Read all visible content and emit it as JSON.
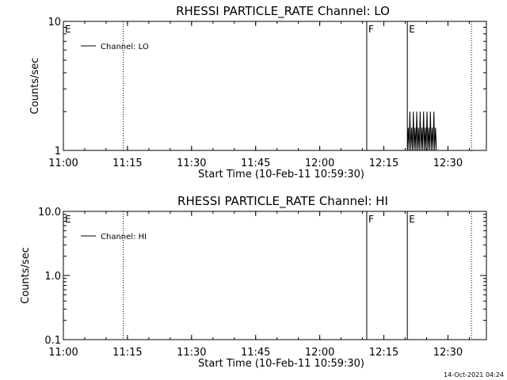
{
  "chart_data": [
    {
      "type": "line",
      "title": "RHESSI PARTICLE_RATE Channel: LO",
      "xlabel": "Start Time (10-Feb-11 10:59:30)",
      "ylabel": "Counts/sec",
      "yscale": "log",
      "xlim": [
        "11:00",
        "12:39"
      ],
      "ylim": [
        1,
        10
      ],
      "x_ticks": [
        "11:00",
        "11:15",
        "11:30",
        "11:45",
        "12:00",
        "12:15",
        "12:30"
      ],
      "y_ticks": [
        "1",
        "10"
      ],
      "legend": {
        "position": "top-left",
        "entries": [
          "Channel: LO"
        ]
      },
      "flags": [
        {
          "time": "11:00",
          "label": "E",
          "style": "dotted"
        },
        {
          "time": "11:14",
          "label": "",
          "style": "dotted"
        },
        {
          "time": "12:11",
          "label": "F",
          "style": "solid"
        },
        {
          "time": "12:20.5",
          "label": "E",
          "style": "solid"
        },
        {
          "time": "12:35.5",
          "label": "",
          "style": "dotted"
        }
      ],
      "series": [
        {
          "name": "Channel: LO",
          "x": [
            "12:20.5",
            "12:20.7",
            "12:20.9",
            "12:21.1",
            "12:21.3",
            "12:21.5",
            "12:21.7",
            "12:21.9",
            "12:22.1",
            "12:22.3",
            "12:22.5",
            "12:22.7",
            "12:22.9",
            "12:23.1",
            "12:23.3",
            "12:23.5",
            "12:23.7",
            "12:23.9",
            "12:24.1",
            "12:24.3",
            "12:24.5",
            "12:24.7",
            "12:24.9",
            "12:25.1",
            "12:25.3",
            "12:25.5",
            "12:25.7",
            "12:25.9",
            "12:26.1",
            "12:26.3",
            "12:26.5",
            "12:26.7",
            "12:26.9",
            "12:27.1",
            "12:27.3"
          ],
          "y": [
            1,
            1.5,
            1,
            2,
            1,
            1.5,
            1,
            2,
            1,
            1.5,
            1,
            2,
            1,
            1.5,
            1,
            2,
            1,
            1.5,
            1,
            2,
            1,
            1.5,
            1,
            2,
            1,
            1.5,
            1,
            2,
            1,
            1.5,
            1,
            2,
            1,
            1.5,
            1
          ]
        }
      ]
    },
    {
      "type": "line",
      "title": "RHESSI PARTICLE_RATE Channel: HI",
      "xlabel": "Start Time (10-Feb-11 10:59:30)",
      "ylabel": "Counts/sec",
      "yscale": "log",
      "xlim": [
        "11:00",
        "12:39"
      ],
      "ylim": [
        0.1,
        10.0
      ],
      "x_ticks": [
        "11:00",
        "11:15",
        "11:30",
        "11:45",
        "12:00",
        "12:15",
        "12:30"
      ],
      "y_ticks": [
        "0.1",
        "1.0",
        "10.0"
      ],
      "legend": {
        "position": "top-left",
        "entries": [
          "Channel: HI"
        ]
      },
      "flags": [
        {
          "time": "11:00",
          "label": "E",
          "style": "dotted"
        },
        {
          "time": "11:14",
          "label": "",
          "style": "dotted"
        },
        {
          "time": "12:11",
          "label": "F",
          "style": "solid"
        },
        {
          "time": "12:20.5",
          "label": "E",
          "style": "solid"
        },
        {
          "time": "12:35.5",
          "label": "",
          "style": "dotted"
        }
      ],
      "series": [
        {
          "name": "Channel: HI",
          "x": [],
          "y": []
        }
      ]
    }
  ],
  "timestamp": "14-Oct-2021 04:24"
}
